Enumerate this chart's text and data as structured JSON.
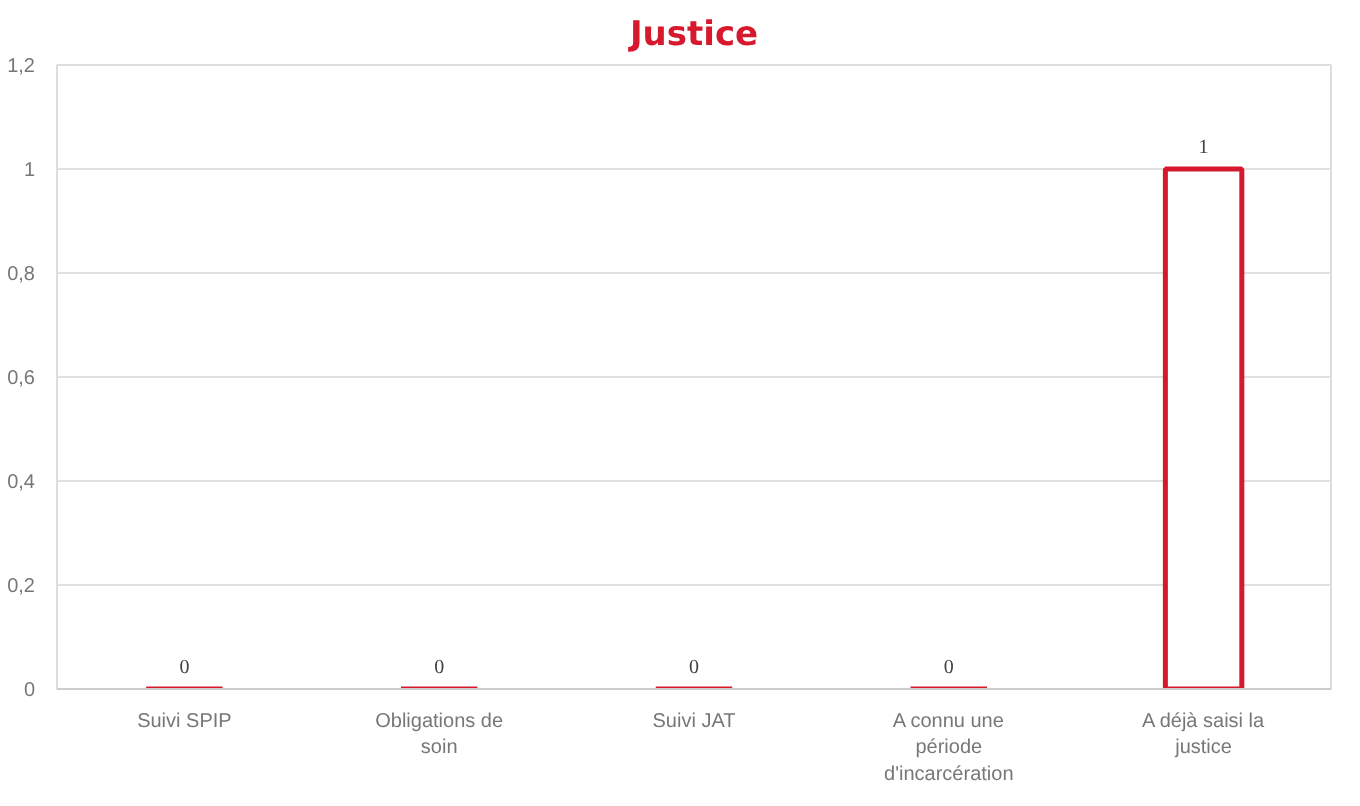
{
  "chart_data": {
    "type": "bar",
    "title": "Justice",
    "categories": [
      "Suivi SPIP",
      "Obligations de soin",
      "Suivi JAT",
      "A connu une période d'incarcération",
      "A déjà saisi la justice"
    ],
    "values": [
      0,
      0,
      0,
      0,
      1
    ],
    "color": "#d7192d",
    "ylim": [
      0,
      1.2
    ],
    "yticks": [
      0,
      {
        "value": 0.2,
        "label": "0,2"
      },
      {
        "value": 0.4,
        "label": "0,4"
      },
      {
        "value": 0.6,
        "label": "0,6"
      },
      {
        "value": 0.8,
        "label": "0,8"
      },
      1,
      {
        "value": 1.2,
        "label": "1,2"
      }
    ],
    "grid": "y",
    "data_labels": true
  }
}
